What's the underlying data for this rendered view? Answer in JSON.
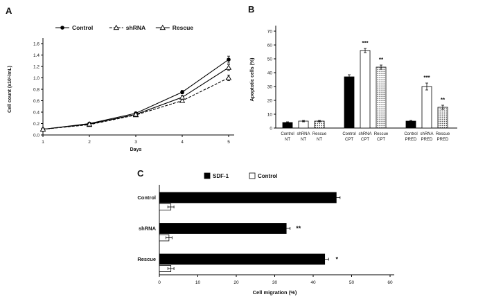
{
  "chart_data": [
    {
      "panel_label": "A",
      "type": "line",
      "x": [
        1,
        2,
        3,
        4,
        5
      ],
      "xlabel": "Days",
      "ylabel": "Cell count (x10⁵/mL)",
      "ylim": [
        0,
        1.6
      ],
      "ystep": 0.2,
      "legend_position": "top",
      "series": [
        {
          "name": "Control",
          "marker": "filled-circle",
          "dash": "solid",
          "values": [
            0.1,
            0.2,
            0.38,
            0.75,
            1.32
          ],
          "errors": [
            0.01,
            0.01,
            0.02,
            0.03,
            0.06
          ]
        },
        {
          "name": "shRNA",
          "marker": "open-triangle",
          "dash": "dashed",
          "values": [
            0.1,
            0.18,
            0.35,
            0.6,
            1.0
          ],
          "errors": [
            0.01,
            0.01,
            0.02,
            0.03,
            0.05
          ]
        },
        {
          "name": "Rescue",
          "marker": "open-triangle",
          "dash": "solid",
          "values": [
            0.1,
            0.19,
            0.36,
            0.66,
            1.18
          ],
          "errors": [
            0.01,
            0.01,
            0.02,
            0.03,
            0.05
          ]
        }
      ]
    },
    {
      "panel_label": "B",
      "type": "bar",
      "ylabel": "Apoptotic cells (%)",
      "ylim": [
        0,
        70
      ],
      "ystep": 10,
      "group_size": 3,
      "bars": [
        {
          "label_line1": "Control",
          "label_line2": "NT",
          "value": 4,
          "error": 0.5,
          "style": "black",
          "sig": ""
        },
        {
          "label_line1": "shRNA",
          "label_line2": "NT",
          "value": 5,
          "error": 0.5,
          "style": "white",
          "sig": ""
        },
        {
          "label_line1": "Rescue",
          "label_line2": "NT",
          "value": 5,
          "error": 0.5,
          "style": "dotted",
          "sig": ""
        },
        {
          "label_line1": "Control",
          "label_line2": "CPT",
          "value": 37,
          "error": 1.5,
          "style": "black",
          "sig": ""
        },
        {
          "label_line1": "shRNA",
          "label_line2": "CPT",
          "value": 56,
          "error": 1.5,
          "style": "white",
          "sig": "***"
        },
        {
          "label_line1": "Rescue",
          "label_line2": "CPT",
          "value": 44,
          "error": 1.5,
          "style": "dotted",
          "sig": "**"
        },
        {
          "label_line1": "Control",
          "label_line2": "PRED",
          "value": 5,
          "error": 0.5,
          "style": "black",
          "sig": ""
        },
        {
          "label_line1": "shRNA",
          "label_line2": "PRED",
          "value": 30,
          "error": 2.5,
          "style": "white",
          "sig": "***"
        },
        {
          "label_line1": "Rescue",
          "label_line2": "PRED",
          "value": 15,
          "error": 1.5,
          "style": "dotted",
          "sig": "**"
        }
      ]
    },
    {
      "panel_label": "C",
      "type": "hbar",
      "xlabel": "Cell migration (%)",
      "xlim": [
        0,
        60
      ],
      "xstep": 10,
      "categories": [
        "Control",
        "shRNA",
        "Rescue"
      ],
      "legend": [
        {
          "name": "SDF-1",
          "fill": "black"
        },
        {
          "name": "Control",
          "fill": "white"
        }
      ],
      "series": [
        {
          "name": "SDF-1",
          "fill": "black",
          "values": [
            46,
            33,
            43
          ],
          "errors": [
            1,
            1,
            1
          ],
          "sig": [
            "",
            "**",
            "*"
          ]
        },
        {
          "name": "Control",
          "fill": "white",
          "values": [
            3,
            2.5,
            3
          ],
          "errors": [
            0.8,
            0.8,
            0.8
          ],
          "sig": [
            "",
            "",
            ""
          ]
        }
      ]
    }
  ]
}
